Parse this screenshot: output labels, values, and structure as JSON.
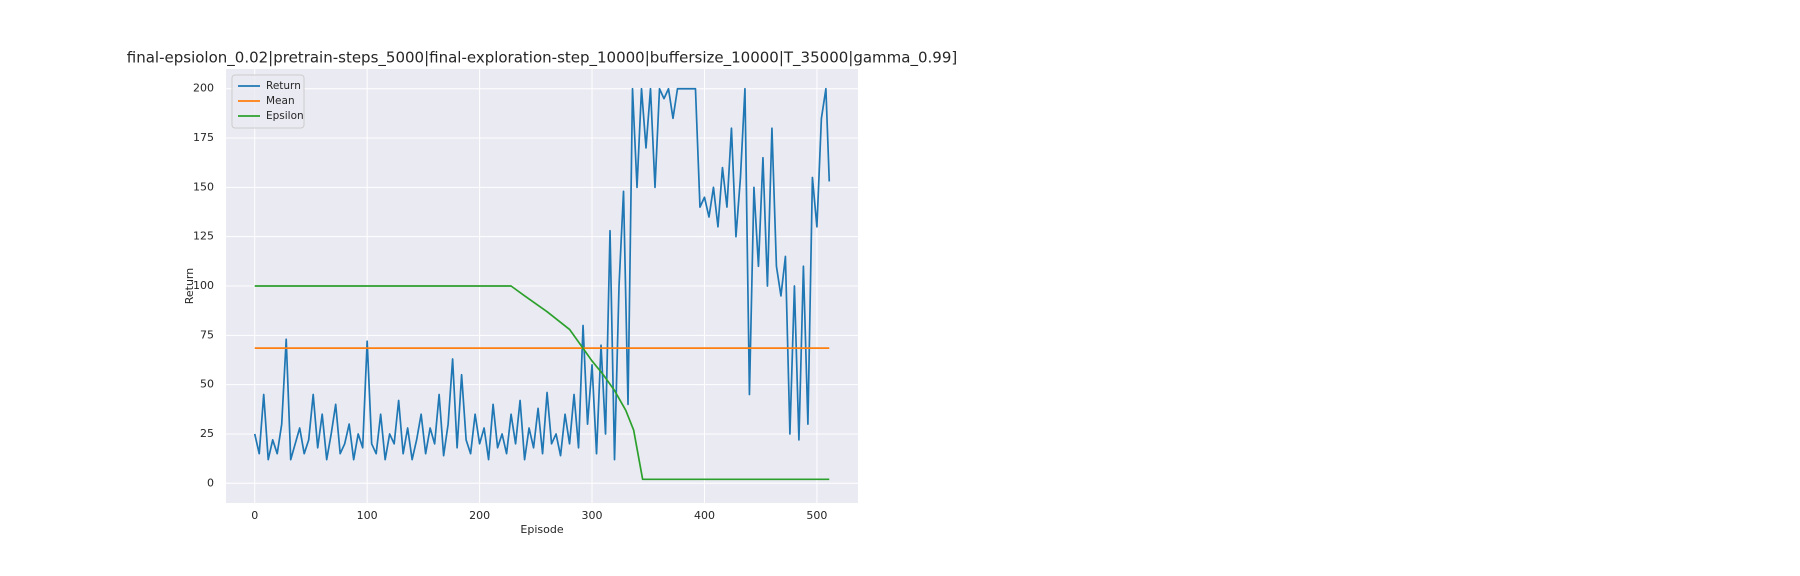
{
  "chart_data": {
    "type": "line",
    "title": "final-epsiolon_0.02|pretrain-steps_5000|final-exploration-step_10000|buffersize_10000|T_35000|gamma_0.99]",
    "xlabel": "Episode",
    "ylabel": "Return",
    "xlim": [
      -25.55,
      536.55
    ],
    "ylim": [
      -10,
      210
    ],
    "xticks": [
      0,
      100,
      200,
      300,
      400,
      500
    ],
    "yticks": [
      0,
      25,
      50,
      75,
      100,
      125,
      150,
      175,
      200
    ],
    "grid": true,
    "legend": "upper left",
    "series": [
      {
        "name": "Return",
        "color": "#1f77b4",
        "x": [
          0,
          4,
          8,
          12,
          16,
          20,
          24,
          28,
          32,
          36,
          40,
          44,
          48,
          52,
          56,
          60,
          64,
          68,
          72,
          76,
          80,
          84,
          88,
          92,
          96,
          100,
          104,
          108,
          112,
          116,
          120,
          124,
          128,
          132,
          136,
          140,
          144,
          148,
          152,
          156,
          160,
          164,
          168,
          172,
          176,
          180,
          184,
          188,
          192,
          196,
          200,
          204,
          208,
          212,
          216,
          220,
          224,
          228,
          232,
          236,
          240,
          244,
          248,
          252,
          256,
          260,
          264,
          268,
          272,
          276,
          280,
          284,
          288,
          292,
          296,
          300,
          304,
          308,
          312,
          316,
          320,
          324,
          328,
          332,
          336,
          340,
          344,
          348,
          352,
          356,
          360,
          364,
          368,
          372,
          376,
          380,
          384,
          388,
          392,
          396,
          400,
          404,
          408,
          412,
          416,
          420,
          424,
          428,
          432,
          436,
          440,
          444,
          448,
          452,
          456,
          460,
          464,
          468,
          472,
          476,
          480,
          484,
          488,
          492,
          496,
          500,
          504,
          508,
          511
        ],
        "values": [
          25,
          15,
          45,
          12,
          22,
          15,
          30,
          73,
          12,
          20,
          28,
          15,
          22,
          45,
          18,
          35,
          12,
          25,
          40,
          15,
          20,
          30,
          12,
          25,
          18,
          72,
          20,
          15,
          35,
          12,
          25,
          20,
          42,
          15,
          28,
          12,
          22,
          35,
          15,
          28,
          20,
          45,
          14,
          30,
          63,
          18,
          55,
          22,
          15,
          35,
          20,
          28,
          12,
          40,
          18,
          25,
          15,
          35,
          20,
          42,
          12,
          28,
          18,
          38,
          15,
          46,
          20,
          25,
          14,
          35,
          20,
          45,
          18,
          80,
          30,
          60,
          15,
          70,
          25,
          128,
          12,
          100,
          148,
          40,
          200,
          150,
          200,
          170,
          200,
          150,
          200,
          195,
          200,
          185,
          200,
          200,
          200,
          200,
          200,
          140,
          145,
          135,
          150,
          130,
          160,
          140,
          180,
          125,
          155,
          200,
          45,
          150,
          110,
          165,
          100,
          180,
          110,
          95,
          115,
          25,
          100,
          22,
          110,
          30,
          155,
          130,
          185,
          200,
          153
        ]
      },
      {
        "name": "Mean",
        "color": "#ff7f0e",
        "x": [
          0,
          511
        ],
        "values": [
          68.5,
          68.5
        ]
      },
      {
        "name": "Epsilon",
        "color": "#2ca02c",
        "x": [
          0,
          228,
          240,
          260,
          280,
          290,
          300,
          310,
          320,
          330,
          337,
          345,
          511
        ],
        "values": [
          100,
          100,
          95,
          87,
          78,
          70,
          62,
          55,
          47,
          37,
          27,
          2,
          2
        ]
      }
    ]
  }
}
